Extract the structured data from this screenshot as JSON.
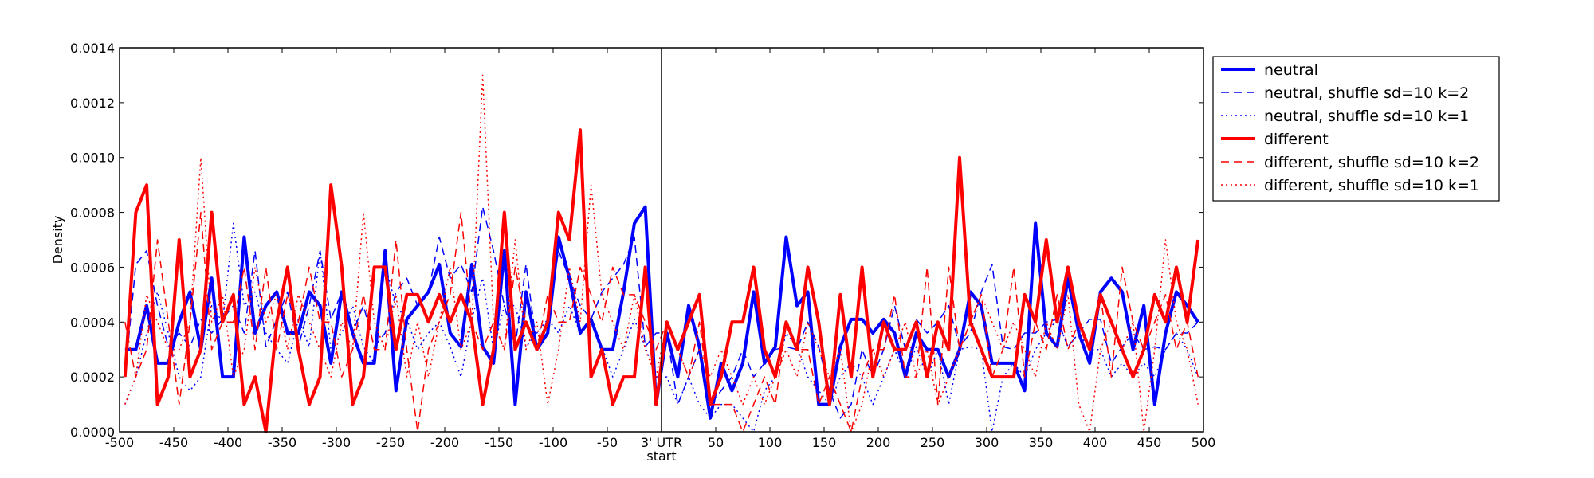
{
  "chart_data": {
    "type": "line",
    "title": "",
    "xlabel": "start",
    "ylabel": "Density",
    "xlim": [
      -500,
      500
    ],
    "ylim": [
      0,
      0.0014
    ],
    "x_ticks": [
      -500,
      -450,
      -400,
      -350,
      -300,
      -250,
      -200,
      -150,
      -100,
      -50,
      0,
      50,
      100,
      150,
      200,
      250,
      300,
      350,
      400,
      450,
      500
    ],
    "x_tick_labels": [
      "-500",
      "-450",
      "-400",
      "-350",
      "-300",
      "-250",
      "-200",
      "-150",
      "-100",
      "-50",
      "3' UTR",
      "50",
      "100",
      "150",
      "200",
      "250",
      "300",
      "350",
      "400",
      "450",
      "500"
    ],
    "y_ticks": [
      0,
      0.0002,
      0.0004,
      0.0006,
      0.0008,
      0.001,
      0.0012,
      0.0014
    ],
    "y_tick_labels": [
      "0.0000",
      "0.0002",
      "0.0004",
      "0.0006",
      "0.0008",
      "0.0010",
      "0.0012",
      "0.0014"
    ],
    "vline_x": 0,
    "grid": false,
    "legend_position": "right, outside plot",
    "x": [
      -495,
      -485,
      -475,
      -465,
      -455,
      -445,
      -435,
      -425,
      -415,
      -405,
      -395,
      -385,
      -375,
      -365,
      -355,
      -345,
      -335,
      -325,
      -315,
      -305,
      -295,
      -285,
      -275,
      -265,
      -255,
      -245,
      -235,
      -225,
      -215,
      -205,
      -195,
      -185,
      -175,
      -165,
      -155,
      -145,
      -135,
      -125,
      -115,
      -105,
      -95,
      -85,
      -75,
      -65,
      -55,
      -45,
      -35,
      -25,
      -15,
      -5,
      5,
      15,
      25,
      35,
      45,
      55,
      65,
      75,
      85,
      95,
      105,
      115,
      125,
      135,
      145,
      155,
      165,
      175,
      185,
      195,
      205,
      215,
      225,
      235,
      245,
      255,
      265,
      275,
      285,
      295,
      305,
      315,
      325,
      335,
      345,
      355,
      365,
      375,
      385,
      395,
      405,
      415,
      425,
      435,
      445,
      455,
      465,
      475,
      485,
      495
    ],
    "series": [
      {
        "name": "neutral",
        "color": "#0000ff",
        "style": "solid",
        "width": 4,
        "values": [
          0.0003,
          0.0003,
          0.00046,
          0.00025,
          0.00025,
          0.0004,
          0.00051,
          0.0003,
          0.00056,
          0.0002,
          0.0002,
          0.00071,
          0.00036,
          0.00046,
          0.00051,
          0.00036,
          0.00036,
          0.00051,
          0.00046,
          0.00025,
          0.00051,
          0.00036,
          0.00025,
          0.00025,
          0.00066,
          0.00015,
          0.00041,
          0.00046,
          0.00051,
          0.00061,
          0.00036,
          0.00031,
          0.00061,
          0.00031,
          0.00025,
          0.00066,
          0.0001,
          0.00051,
          0.0003,
          0.00036,
          0.00071,
          0.00056,
          0.00036,
          0.00041,
          0.0003,
          0.0003,
          0.00051,
          0.00076,
          0.00082,
          0.0001,
          0.00036,
          0.0002,
          0.00046,
          0.00031,
          5e-05,
          0.00025,
          0.00015,
          0.00025,
          0.00051,
          0.00025,
          0.00031,
          0.00071,
          0.00046,
          0.00051,
          0.0001,
          0.0001,
          0.00031,
          0.00041,
          0.00041,
          0.00036,
          0.00041,
          0.00036,
          0.0002,
          0.00036,
          0.0003,
          0.0003,
          0.0002,
          0.0003,
          0.00051,
          0.00046,
          0.00025,
          0.00025,
          0.00025,
          0.00015,
          0.00076,
          0.00036,
          0.00031,
          0.00056,
          0.00036,
          0.00025,
          0.00051,
          0.00056,
          0.00051,
          0.0003,
          0.00046,
          0.0001,
          0.00036,
          0.00051,
          0.00046,
          0.0004
        ]
      },
      {
        "name": "neutral, shuffle sd=10 k=2",
        "color": "#0000ff",
        "style": "dashed",
        "width": 1.5,
        "values": [
          0.0002,
          0.00061,
          0.00066,
          0.00046,
          0.00031,
          0.00036,
          0.00031,
          0.00041,
          0.00036,
          0.00041,
          0.00046,
          0.00036,
          0.00066,
          0.00031,
          0.00041,
          0.00051,
          0.00031,
          0.00046,
          0.00066,
          0.00041,
          0.00051,
          0.00036,
          0.00046,
          0.00031,
          0.00036,
          0.00051,
          0.00056,
          0.00046,
          0.00051,
          0.00071,
          0.00056,
          0.00061,
          0.00051,
          0.00082,
          0.00066,
          0.00046,
          0.00031,
          0.00061,
          0.00031,
          0.00041,
          0.00066,
          0.00056,
          0.00046,
          0.00041,
          0.00051,
          0.00056,
          0.00061,
          0.00071,
          0.00031,
          0.00036,
          0.00036,
          0.0001,
          0.0002,
          0.0003,
          0.0001,
          0.00015,
          0.0002,
          0.0003,
          0.0002,
          0.00025,
          0.0003,
          0.00031,
          0.0003,
          0.0004,
          0.00031,
          0.00015,
          5e-05,
          0.0001,
          0.0003,
          0.0002,
          0.0003,
          0.00046,
          0.0003,
          0.00041,
          0.00036,
          0.0004,
          0.00046,
          0.00031,
          0.00036,
          0.00051,
          0.00061,
          0.00031,
          0.0003,
          0.00036,
          0.00036,
          0.0004,
          0.00041,
          0.00031,
          0.00036,
          0.00041,
          0.00041,
          0.00025,
          0.00031,
          0.00036,
          0.0003,
          0.00031,
          0.0003,
          0.00036,
          0.00036,
          0.0004
        ]
      },
      {
        "name": "neutral, shuffle sd=10 k=1",
        "color": "#0000ff",
        "style": "dotted",
        "width": 1.5,
        "values": [
          0.0001,
          0.0002,
          0.00036,
          0.00051,
          0.00036,
          0.0002,
          0.00015,
          0.0002,
          0.00046,
          0.0004,
          0.00076,
          0.00046,
          0.00051,
          0.00036,
          0.0003,
          0.00025,
          0.00041,
          0.00031,
          0.00066,
          0.0003,
          0.00036,
          0.00046,
          0.00031,
          0.00025,
          0.00061,
          0.00046,
          0.00041,
          0.0003,
          0.00036,
          0.0004,
          0.00031,
          0.0002,
          0.00041,
          0.00056,
          0.0003,
          0.00046,
          0.00046,
          0.00031,
          0.00036,
          0.00041,
          0.00036,
          0.00046,
          0.00036,
          0.00041,
          0.00031,
          0.0002,
          0.0003,
          0.00041,
          0.00031,
          0.0002,
          0.0002,
          0.0001,
          0.0002,
          0.0001,
          5e-05,
          0.0001,
          0.0001,
          5e-05,
          0.0,
          0.00015,
          0.0002,
          0.00036,
          0.00031,
          0.0002,
          0.00015,
          0.0001,
          0.0002,
          0.00025,
          0.0002,
          0.0001,
          0.0002,
          0.0003,
          0.0002,
          0.00031,
          0.0002,
          0.0003,
          0.0001,
          0.0003,
          0.00031,
          0.0003,
          0.0,
          0.0002,
          0.00025,
          0.0002,
          0.0003,
          0.00036,
          0.00041,
          0.00031,
          0.00036,
          0.0003,
          0.0003,
          0.0002,
          0.00025,
          0.0002,
          0.00025,
          0.0002,
          0.0003,
          0.00036,
          0.0003,
          0.0002
        ]
      },
      {
        "name": "different",
        "color": "#ff0000",
        "style": "solid",
        "width": 4,
        "values": [
          0.0002,
          0.0008,
          0.0009,
          0.0001,
          0.0002,
          0.0007,
          0.0002,
          0.0003,
          0.0008,
          0.0004,
          0.0005,
          0.0001,
          0.0002,
          0.0,
          0.0004,
          0.0006,
          0.0003,
          0.0001,
          0.0002,
          0.0009,
          0.0006,
          0.0001,
          0.0002,
          0.0006,
          0.0006,
          0.0003,
          0.0005,
          0.0005,
          0.0004,
          0.0005,
          0.0004,
          0.0005,
          0.0004,
          0.0001,
          0.0003,
          0.0008,
          0.0003,
          0.0004,
          0.0003,
          0.0004,
          0.0008,
          0.0007,
          0.0011,
          0.0002,
          0.0003,
          0.0001,
          0.0002,
          0.0002,
          0.0006,
          0.0001,
          0.0004,
          0.0003,
          0.0004,
          0.0005,
          0.0001,
          0.0002,
          0.0004,
          0.0004,
          0.0006,
          0.0003,
          0.0002,
          0.0004,
          0.0003,
          0.0006,
          0.0004,
          0.0001,
          0.0005,
          0.0002,
          0.0006,
          0.0002,
          0.0004,
          0.0003,
          0.0003,
          0.0004,
          0.0002,
          0.0004,
          0.0003,
          0.001,
          0.0004,
          0.0003,
          0.0002,
          0.0002,
          0.0002,
          0.0005,
          0.0004,
          0.0007,
          0.0004,
          0.0006,
          0.0004,
          0.0003,
          0.0005,
          0.0004,
          0.0003,
          0.0002,
          0.0003,
          0.0005,
          0.0004,
          0.0006,
          0.0004,
          0.0007
        ]
      },
      {
        "name": "different, shuffle sd=10 k=2",
        "color": "#ff0000",
        "style": "dashed",
        "width": 1.5,
        "values": [
          0.0004,
          0.0002,
          0.0003,
          0.0007,
          0.0004,
          0.0001,
          0.0004,
          0.0008,
          0.0003,
          0.0004,
          0.0004,
          0.0006,
          0.0003,
          0.0006,
          0.0003,
          0.0005,
          0.0004,
          0.0006,
          0.0004,
          0.0004,
          0.0002,
          0.0003,
          0.0005,
          0.0003,
          0.0003,
          0.0007,
          0.0003,
          0.0,
          0.0003,
          0.0004,
          0.0005,
          0.0008,
          0.0004,
          0.0003,
          0.0004,
          0.0003,
          0.0006,
          0.0004,
          0.0003,
          0.0005,
          0.0004,
          0.0004,
          0.0006,
          0.0005,
          0.0004,
          0.0006,
          0.0005,
          0.0005,
          0.0004,
          0.0003,
          0.0004,
          0.0003,
          0.0002,
          0.0004,
          0.0001,
          0.0001,
          0.0001,
          0.0,
          0.0001,
          0.0002,
          0.0001,
          0.0004,
          0.0003,
          0.0003,
          0.0001,
          0.0002,
          0.0001,
          0.0,
          0.0002,
          0.0003,
          0.0003,
          0.0005,
          0.0002,
          0.0002,
          0.0006,
          0.0001,
          0.0006,
          0.0003,
          0.0004,
          0.0005,
          0.0002,
          0.0003,
          0.0006,
          0.0002,
          0.0004,
          0.0003,
          0.0005,
          0.0003,
          0.0004,
          0.0003,
          0.0005,
          0.0002,
          0.0006,
          0.0004,
          0.0003,
          0.0004,
          0.0005,
          0.0003,
          0.0004,
          0.0002
        ]
      },
      {
        "name": "different, shuffle sd=10 k=1",
        "color": "#ff0000",
        "style": "dotted",
        "width": 1.5,
        "values": [
          0.0001,
          0.0002,
          0.0005,
          0.0004,
          0.0003,
          0.0003,
          0.0004,
          0.001,
          0.0004,
          0.0005,
          0.0002,
          0.0003,
          0.0006,
          0.0004,
          0.0005,
          0.0003,
          0.0005,
          0.0004,
          0.0003,
          0.0002,
          0.0004,
          0.0003,
          0.0008,
          0.0004,
          0.0003,
          0.0005,
          0.0002,
          0.0004,
          0.0002,
          0.0004,
          0.0006,
          0.0003,
          0.0004,
          0.0013,
          0.0004,
          0.0003,
          0.0007,
          0.0003,
          0.0004,
          0.0001,
          0.0003,
          0.0006,
          0.0004,
          0.0009,
          0.0005,
          0.0004,
          0.0003,
          0.0005,
          0.0003,
          0.0002,
          0.0004,
          0.0003,
          0.0002,
          0.0003,
          0.0002,
          0.0003,
          0.0002,
          0.0001,
          0.0002,
          0.0001,
          0.0002,
          0.0003,
          0.0002,
          0.0004,
          0.0003,
          0.0002,
          0.0003,
          0.0,
          0.0001,
          0.0003,
          0.0002,
          0.0003,
          0.0004,
          0.0002,
          0.0003,
          0.0001,
          0.0002,
          0.0003,
          0.0004,
          0.0005,
          0.0004,
          0.0003,
          0.0004,
          0.0003,
          0.0002,
          0.0004,
          0.0003,
          0.0005,
          0.0001,
          0.0,
          0.0003,
          0.0004,
          0.0003,
          0.0004,
          0.0,
          0.0003,
          0.0007,
          0.0004,
          0.0003,
          0.0001
        ]
      }
    ]
  }
}
